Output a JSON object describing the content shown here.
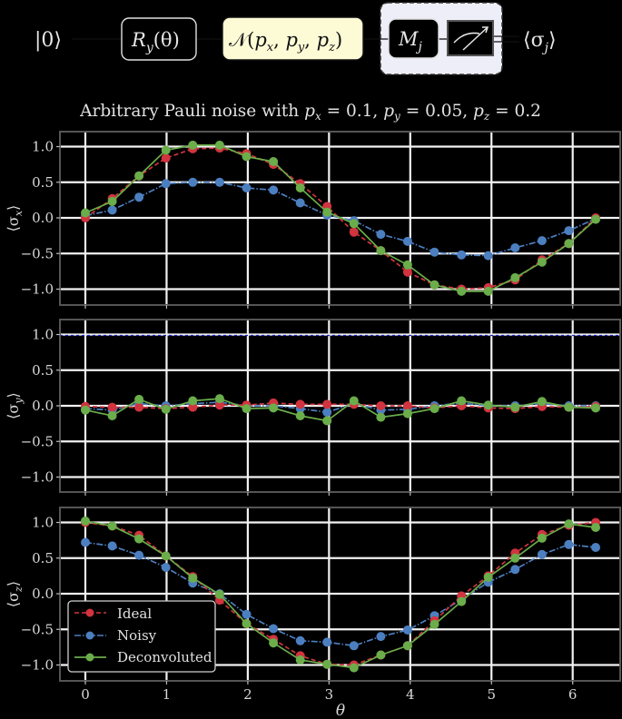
{
  "circuit": {
    "input_state": "|0⟩",
    "rotation_gate": "R_y(θ)",
    "rotation_gate_main": "R",
    "rotation_gate_sub": "y",
    "rotation_gate_arg": "(θ)",
    "noise_channel": "𝒩(p_x, p_y, p_z)",
    "noise_main": "𝒩(",
    "noise_args": [
      {
        "p": "p",
        "sub": "x"
      },
      {
        "p": "p",
        "sub": "y"
      },
      {
        "p": "p",
        "sub": "z"
      }
    ],
    "measure_basis_main": "M",
    "measure_basis_sub": "j",
    "meter_icon": "measurement-meter-icon",
    "output": "⟨σ_j⟩",
    "output_main": "⟨σ",
    "output_sub": "j",
    "output_close": "⟩",
    "colors": {
      "noise_fill": "#fdfbd6",
      "measure_group_fill": "#eeeef8"
    }
  },
  "chart_data": {
    "type": "line",
    "title": "Arbitrary Pauli noise with p_x = 0.1, p_y = 0.05, p_z = 0.2",
    "title_parts": [
      "Arbitrary Pauli noise with ",
      "p",
      "x",
      " = 0.1, ",
      "p",
      "y",
      " = 0.05, ",
      "p",
      "z",
      " = 0.2"
    ],
    "xlabel": "θ",
    "xlim": [
      -0.35,
      6.63
    ],
    "xticks": [
      0,
      1,
      2,
      3,
      4,
      5,
      6
    ],
    "x": [
      0.0,
      0.331,
      0.661,
      0.992,
      1.323,
      1.653,
      1.984,
      2.315,
      2.646,
      2.976,
      3.307,
      3.638,
      3.968,
      4.299,
      4.63,
      4.96,
      5.291,
      5.622,
      5.952,
      6.283
    ],
    "grid": true,
    "legend": {
      "position": "lower left (bottom panel)",
      "entries": [
        {
          "name": "Ideal",
          "color": "#d1343f",
          "style": "dashed"
        },
        {
          "name": "Noisy",
          "color": "#4c7fc0",
          "style": "dashdot"
        },
        {
          "name": "Deconvoluted",
          "color": "#6aad4a",
          "style": "solid"
        }
      ]
    },
    "panels": [
      {
        "ylabel": "⟨σx⟩",
        "ylabel_main": "⟨σ",
        "ylabel_sub": "x",
        "ylim": [
          -1.2,
          1.2
        ],
        "yticks": [
          -1.0,
          -0.5,
          0.0,
          0.5,
          1.0
        ],
        "ytick_labels": [
          "−1.0",
          "−0.5",
          "0.0",
          "0.5",
          "1.0"
        ],
        "series": [
          {
            "name": "Ideal",
            "values": [
              0.0,
              0.27,
              0.59,
              0.84,
              0.97,
              0.98,
              0.9,
              0.75,
              0.48,
              0.16,
              -0.2,
              -0.46,
              -0.76,
              -0.94,
              -1.0,
              -0.98,
              -0.87,
              -0.59,
              -0.36,
              0.0
            ]
          },
          {
            "name": "Noisy",
            "values": [
              0.03,
              0.11,
              0.29,
              0.48,
              0.5,
              0.5,
              0.42,
              0.39,
              0.21,
              0.04,
              -0.04,
              -0.23,
              -0.33,
              -0.48,
              -0.52,
              -0.53,
              -0.42,
              -0.32,
              -0.18,
              -0.01
            ]
          },
          {
            "name": "Deconvoluted",
            "values": [
              0.07,
              0.23,
              0.59,
              0.95,
              1.02,
              1.02,
              0.86,
              0.79,
              0.42,
              0.08,
              -0.08,
              -0.46,
              -0.66,
              -0.94,
              -1.03,
              -1.03,
              -0.84,
              -0.62,
              -0.36,
              -0.02
            ]
          }
        ]
      },
      {
        "ylabel": "⟨σy⟩",
        "ylabel_main": "⟨σ",
        "ylabel_sub": "y",
        "ylim": [
          -1.2,
          1.2
        ],
        "yticks": [
          -1.0,
          -0.5,
          0.0,
          0.5,
          1.0
        ],
        "ytick_labels": [
          "−1.0",
          "−0.5",
          "0.0",
          "0.5",
          "1.0"
        ],
        "series": [
          {
            "name": "Ideal",
            "values": [
              -0.01,
              -0.02,
              -0.02,
              -0.04,
              -0.02,
              0.01,
              0.01,
              0.04,
              0.02,
              0.02,
              0.02,
              0.0,
              0.0,
              -0.03,
              0.0,
              -0.03,
              -0.04,
              -0.01,
              -0.02,
              -0.01
            ]
          },
          {
            "name": "Noisy",
            "values": [
              -0.04,
              -0.06,
              0.03,
              0.0,
              0.03,
              0.05,
              0.0,
              0.0,
              -0.04,
              -0.09,
              0.03,
              -0.06,
              -0.05,
              0.0,
              0.04,
              0.0,
              0.0,
              0.03,
              0.0,
              0.0
            ]
          },
          {
            "name": "Deconvoluted",
            "values": [
              -0.06,
              -0.14,
              0.09,
              -0.05,
              0.07,
              0.1,
              -0.04,
              -0.03,
              -0.14,
              -0.21,
              0.07,
              -0.16,
              -0.11,
              -0.04,
              0.07,
              0.01,
              -0.02,
              0.06,
              -0.02,
              -0.03
            ]
          }
        ]
      },
      {
        "ylabel": "⟨σz⟩",
        "ylabel_main": "⟨σ",
        "ylabel_sub": "z",
        "ylim": [
          -1.2,
          1.2
        ],
        "yticks": [
          -1.0,
          -0.5,
          0.0,
          0.5,
          1.0
        ],
        "ytick_labels": [
          "−1.0",
          "−0.5",
          "0.0",
          "0.5",
          "1.0"
        ],
        "series": [
          {
            "name": "Ideal",
            "values": [
              1.0,
              0.95,
              0.82,
              0.53,
              0.24,
              -0.09,
              -0.42,
              -0.64,
              -0.87,
              -0.99,
              -1.0,
              -0.86,
              -0.73,
              -0.38,
              -0.03,
              0.25,
              0.57,
              0.83,
              0.96,
              1.0
            ]
          },
          {
            "name": "Noisy",
            "values": [
              0.72,
              0.67,
              0.54,
              0.37,
              0.15,
              0.0,
              -0.29,
              -0.49,
              -0.66,
              -0.68,
              -0.73,
              -0.6,
              -0.51,
              -0.31,
              -0.08,
              0.16,
              0.34,
              0.55,
              0.69,
              0.65
            ]
          },
          {
            "name": "Deconvoluted",
            "values": [
              1.02,
              0.95,
              0.77,
              0.53,
              0.22,
              -0.01,
              -0.42,
              -0.69,
              -0.93,
              -0.99,
              -1.04,
              -0.86,
              -0.73,
              -0.43,
              -0.11,
              0.23,
              0.5,
              0.78,
              0.98,
              0.93
            ]
          }
        ]
      }
    ]
  }
}
